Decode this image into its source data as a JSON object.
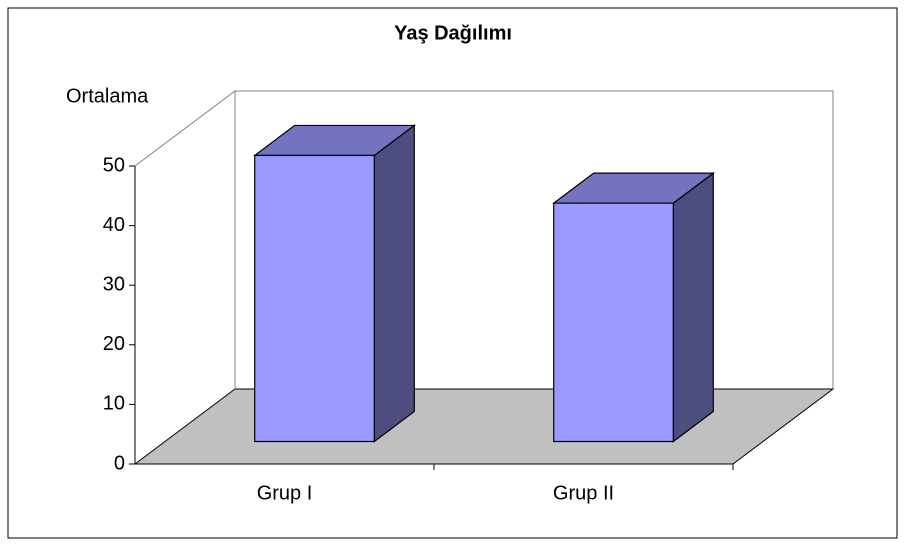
{
  "chart_data": {
    "type": "bar3d",
    "title": "Yaş Dağılımı",
    "y_label": "Ortalama",
    "categories": [
      "Grup I",
      "Grup II"
    ],
    "values": [
      48,
      40
    ],
    "color": "#9999ff",
    "ylim": [
      0,
      50
    ],
    "yticks": [
      0,
      10,
      20,
      30,
      40,
      50
    ]
  }
}
